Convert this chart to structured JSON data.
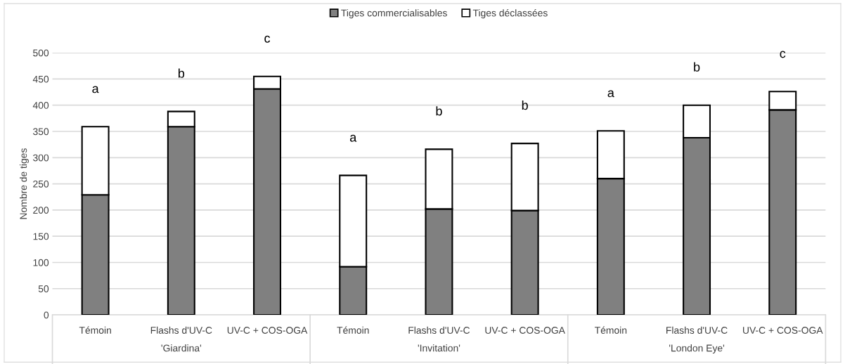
{
  "chart_data": {
    "type": "bar",
    "stacked": true,
    "ylabel": "Nombre de tiges",
    "categories": [
      "Témoin",
      "Flashs d'UV-C",
      "UV-C + COS-OGA",
      "Témoin",
      "Flashs d'UV-C",
      "UV-C + COS-OGA",
      "Témoin",
      "Flashs d'UV-C",
      "UV-C + COS-OGA"
    ],
    "series": [
      {
        "name": "Tiges commercialisables",
        "color": "#808080",
        "values": [
          229,
          359,
          431,
          92,
          202,
          199,
          260,
          338,
          391
        ]
      },
      {
        "name": "Tiges déclassées",
        "color": "#ffffff",
        "values": [
          130,
          29,
          24,
          174,
          114,
          128,
          91,
          62,
          35
        ]
      }
    ],
    "ylim": [
      0,
      500
    ],
    "yticks": [
      0,
      50,
      100,
      150,
      200,
      250,
      300,
      350,
      400,
      450,
      500
    ],
    "grid": "y",
    "legend": "top",
    "annotations": [
      "a",
      "b",
      "c",
      "a",
      "b",
      "b",
      "a",
      "b",
      "c",
      "'Giardina'",
      "'Invitation'",
      "'London Eye'"
    ]
  }
}
